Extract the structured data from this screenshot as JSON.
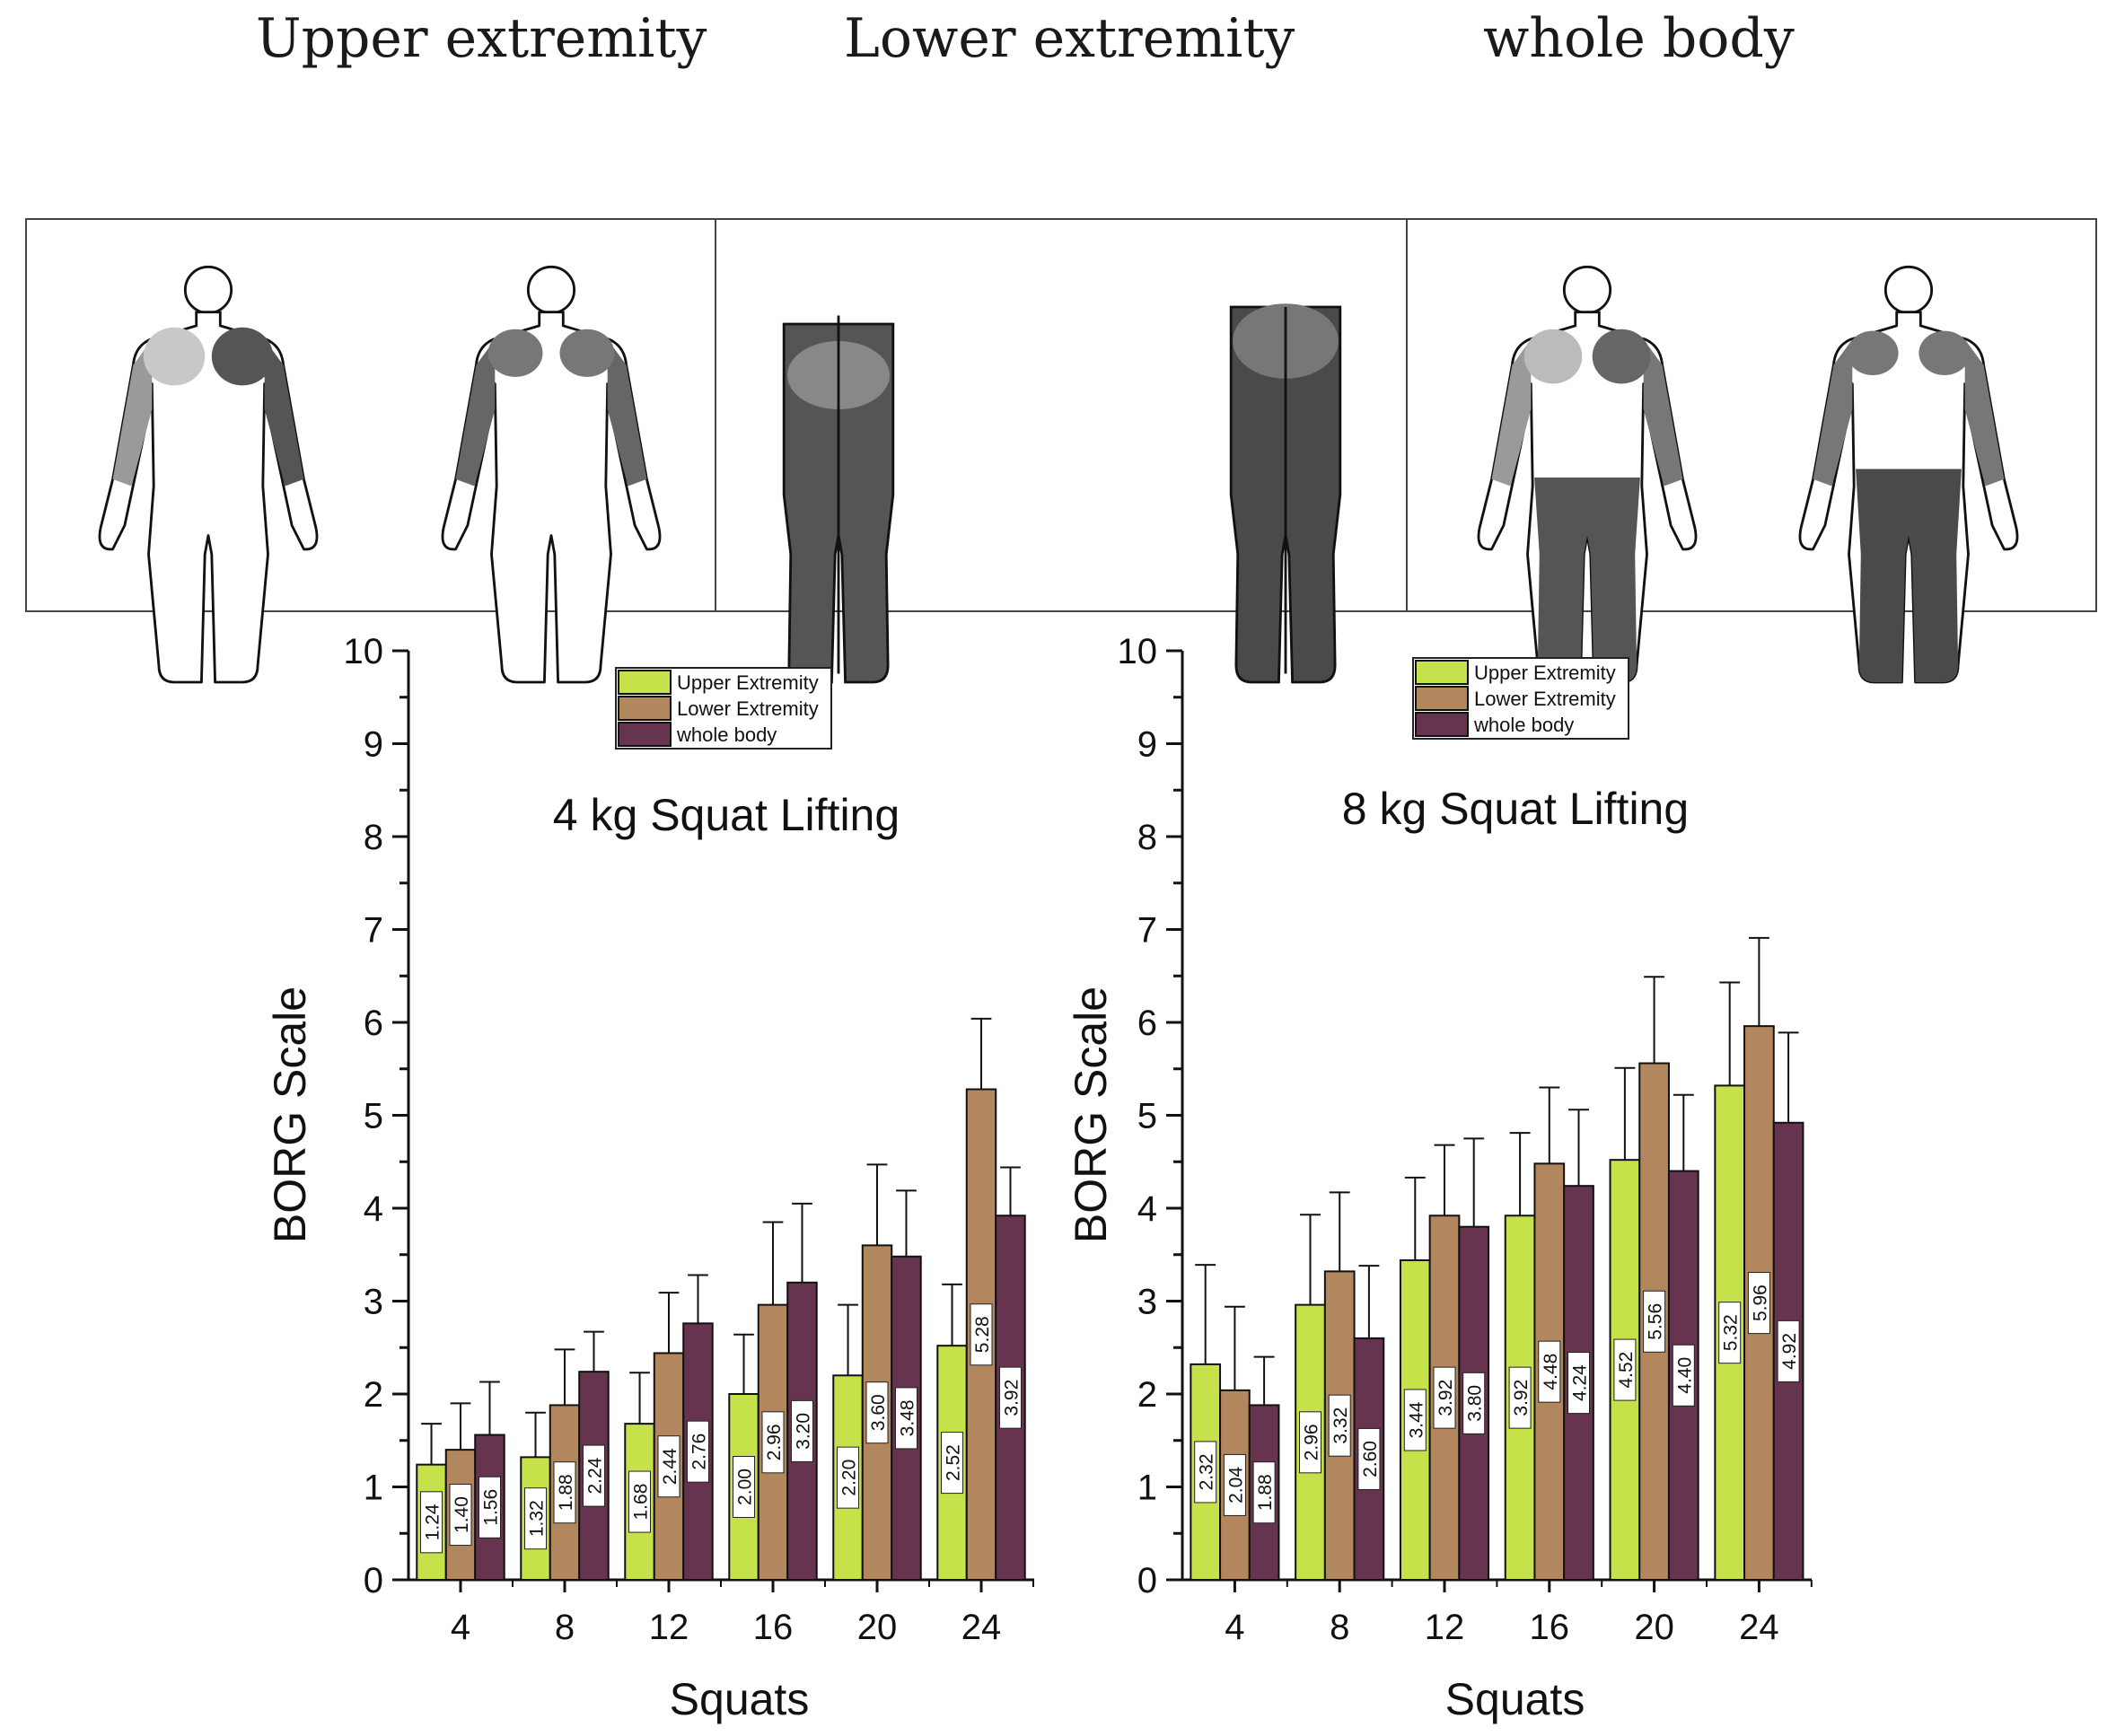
{
  "header": {
    "upper": "Upper extremity",
    "lower": "Lower extremity",
    "whole": "whole body"
  },
  "colors": {
    "upper": "#c6e24a",
    "lower": "#b2875e",
    "whole": "#66344f",
    "body_shade": "#555555",
    "body_light": "#aaaaaa"
  },
  "chart_data": [
    {
      "type": "bar",
      "title": "4 kg Squat Lifting",
      "xlabel": "Squats",
      "ylabel": "BORG Scale",
      "ylim": [
        0,
        10
      ],
      "yticks": [
        "0",
        "1",
        "2",
        "3",
        "4",
        "5",
        "6",
        "7",
        "8",
        "9",
        "10"
      ],
      "categories": [
        "4",
        "8",
        "12",
        "16",
        "20",
        "24"
      ],
      "legend": [
        "Upper Extremity",
        "Lower Extremity",
        "whole body"
      ],
      "legend_position": "top-center",
      "series": [
        {
          "name": "Upper Extremity",
          "values": [
            1.24,
            1.32,
            1.68,
            2.0,
            2.2,
            2.52
          ],
          "labels": [
            "1.24",
            "1.32",
            "1.68",
            "2.00",
            "2.20",
            "2.52"
          ],
          "errors": [
            0.44,
            0.48,
            0.55,
            0.64,
            0.76,
            0.66
          ]
        },
        {
          "name": "Lower Extremity",
          "values": [
            1.4,
            1.88,
            2.44,
            2.96,
            3.6,
            5.28
          ],
          "labels": [
            "1.40",
            "1.88",
            "2.44",
            "2.96",
            "3.60",
            "5.28"
          ],
          "errors": [
            0.5,
            0.6,
            0.65,
            0.89,
            0.87,
            0.76
          ]
        },
        {
          "name": "whole body",
          "values": [
            1.56,
            2.24,
            2.76,
            3.2,
            3.48,
            3.92
          ],
          "labels": [
            "1.56",
            "2.24",
            "2.76",
            "3.20",
            "3.48",
            "3.92"
          ],
          "errors": [
            0.57,
            0.43,
            0.52,
            0.85,
            0.71,
            0.52
          ]
        }
      ]
    },
    {
      "type": "bar",
      "title": "8 kg Squat Lifting",
      "xlabel": "Squats",
      "ylabel": "BORG Scale",
      "ylim": [
        0,
        10
      ],
      "yticks": [
        "0",
        "1",
        "2",
        "3",
        "4",
        "5",
        "6",
        "7",
        "8",
        "9",
        "10"
      ],
      "categories": [
        "4",
        "8",
        "12",
        "16",
        "20",
        "24"
      ],
      "legend": [
        "Upper Extremity",
        "Lower Extremity",
        "whole body"
      ],
      "legend_position": "top-center",
      "series": [
        {
          "name": "Upper Extremity",
          "values": [
            2.32,
            2.96,
            3.44,
            3.92,
            4.52,
            5.32
          ],
          "labels": [
            "2.32",
            "2.96",
            "3.44",
            "3.92",
            "4.52",
            "5.32"
          ],
          "errors": [
            1.07,
            0.97,
            0.89,
            0.89,
            0.99,
            1.11
          ]
        },
        {
          "name": "Lower Extremity",
          "values": [
            2.04,
            3.32,
            3.92,
            4.48,
            5.56,
            5.96
          ],
          "labels": [
            "2.04",
            "3.32",
            "3.92",
            "4.48",
            "5.56",
            "5.96"
          ],
          "errors": [
            0.9,
            0.85,
            0.76,
            0.82,
            0.93,
            0.95
          ]
        },
        {
          "name": "whole body",
          "values": [
            1.88,
            2.6,
            3.8,
            4.24,
            4.4,
            4.92
          ],
          "labels": [
            "1.88",
            "2.60",
            "3.80",
            "4.24",
            "4.40",
            "4.92"
          ],
          "errors": [
            0.52,
            0.78,
            0.95,
            0.82,
            0.82,
            0.97
          ]
        }
      ]
    }
  ]
}
